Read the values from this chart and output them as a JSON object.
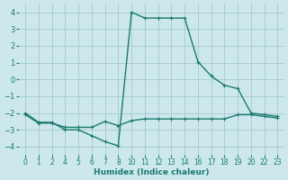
{
  "xlabel": "Humidex (Indice chaleur)",
  "bg_color": "#cce8ec",
  "grid_color": "#aacdd4",
  "line_color": "#1a7a6e",
  "line1_x": [
    0,
    1,
    2,
    3,
    4,
    5,
    6,
    7,
    8,
    9,
    10,
    11,
    12,
    13,
    14,
    15,
    16,
    17,
    18,
    19
  ],
  "line1_y": [
    -2.0,
    -2.55,
    -2.55,
    -3.0,
    -3.0,
    -3.35,
    -3.7,
    -3.95,
    4.0,
    3.65,
    3.65,
    3.65,
    3.65,
    1.05,
    0.2,
    -0.35,
    -0.55,
    -2.0,
    -2.1,
    -2.2
  ],
  "line2_x": [
    0,
    1,
    2,
    3,
    4,
    5,
    6,
    7,
    8,
    9,
    10,
    11,
    12,
    13,
    14,
    15,
    16,
    17,
    18,
    19
  ],
  "line2_y": [
    -2.1,
    -2.6,
    -2.6,
    -2.85,
    -2.85,
    -2.85,
    -2.5,
    -2.75,
    -2.45,
    -2.35,
    -2.35,
    -2.35,
    -2.35,
    -2.35,
    -2.35,
    -2.35,
    -2.1,
    -2.1,
    -2.2,
    -2.3
  ],
  "xlim": [
    -0.5,
    19.5
  ],
  "ylim": [
    -4.5,
    4.5
  ],
  "xtick_positions": [
    0,
    1,
    2,
    3,
    4,
    5,
    6,
    7,
    8,
    9,
    10,
    11,
    12,
    13,
    14,
    15,
    16,
    17,
    18,
    19
  ],
  "xtick_labels": [
    "0",
    "1",
    "2",
    "4",
    "5",
    "6",
    "7",
    "8",
    "10",
    "11",
    "12",
    "13",
    "14",
    "16",
    "17",
    "18",
    "19",
    "20",
    "22",
    "23"
  ],
  "yticks": [
    -4,
    -3,
    -2,
    -1,
    0,
    1,
    2,
    3,
    4
  ]
}
